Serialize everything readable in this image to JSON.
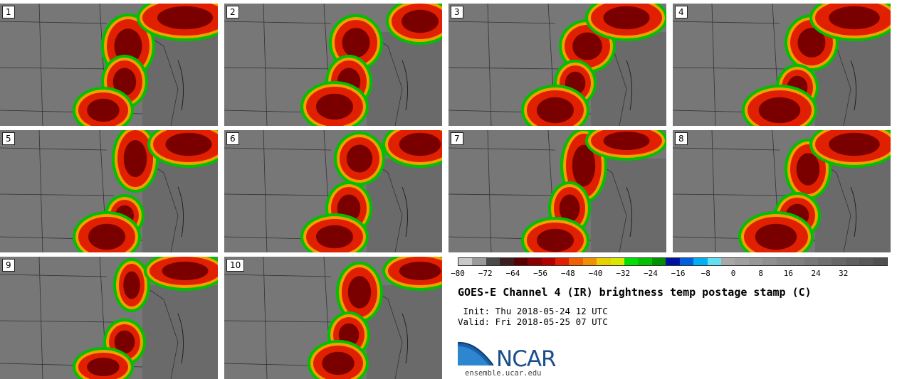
{
  "panels": [
    {
      "label": "1"
    },
    {
      "label": "2"
    },
    {
      "label": "3"
    },
    {
      "label": "4"
    },
    {
      "label": "5"
    },
    {
      "label": "6"
    },
    {
      "label": "7"
    },
    {
      "label": "8"
    },
    {
      "label": "9"
    },
    {
      "label": "10"
    }
  ],
  "colorbar": {
    "colors": [
      "#c8c8c8",
      "#9a9a9a",
      "#4a4a4a",
      "#3a2020",
      "#5a0000",
      "#8a0000",
      "#b40000",
      "#e02000",
      "#f06000",
      "#f09000",
      "#e8d000",
      "#d8e800",
      "#00e000",
      "#00c000",
      "#009000",
      "#0010a0",
      "#0060e0",
      "#00b0f0",
      "#60e0f0",
      "#a8a8a8",
      "#a0a0a0",
      "#989898",
      "#909090",
      "#888888",
      "#808080",
      "#787878",
      "#707070",
      "#686868",
      "#606060",
      "#585858",
      "#505050"
    ],
    "tick_labels": [
      "−80",
      "−72",
      "−64",
      "−56",
      "−48",
      "−40",
      "−32",
      "−24",
      "−16",
      "−8",
      "0",
      "8",
      "16",
      "24",
      "32"
    ]
  },
  "title": "GOES-E Channel 4 (IR) brightness temp postage stamp (C)",
  "init_line": " Init: Thu 2018-05-24 12 UTC",
  "valid_line": "Valid: Fri 2018-05-25 07 UTC",
  "logo_text": "NCAR",
  "site": "ensemble.ucar.edu"
}
